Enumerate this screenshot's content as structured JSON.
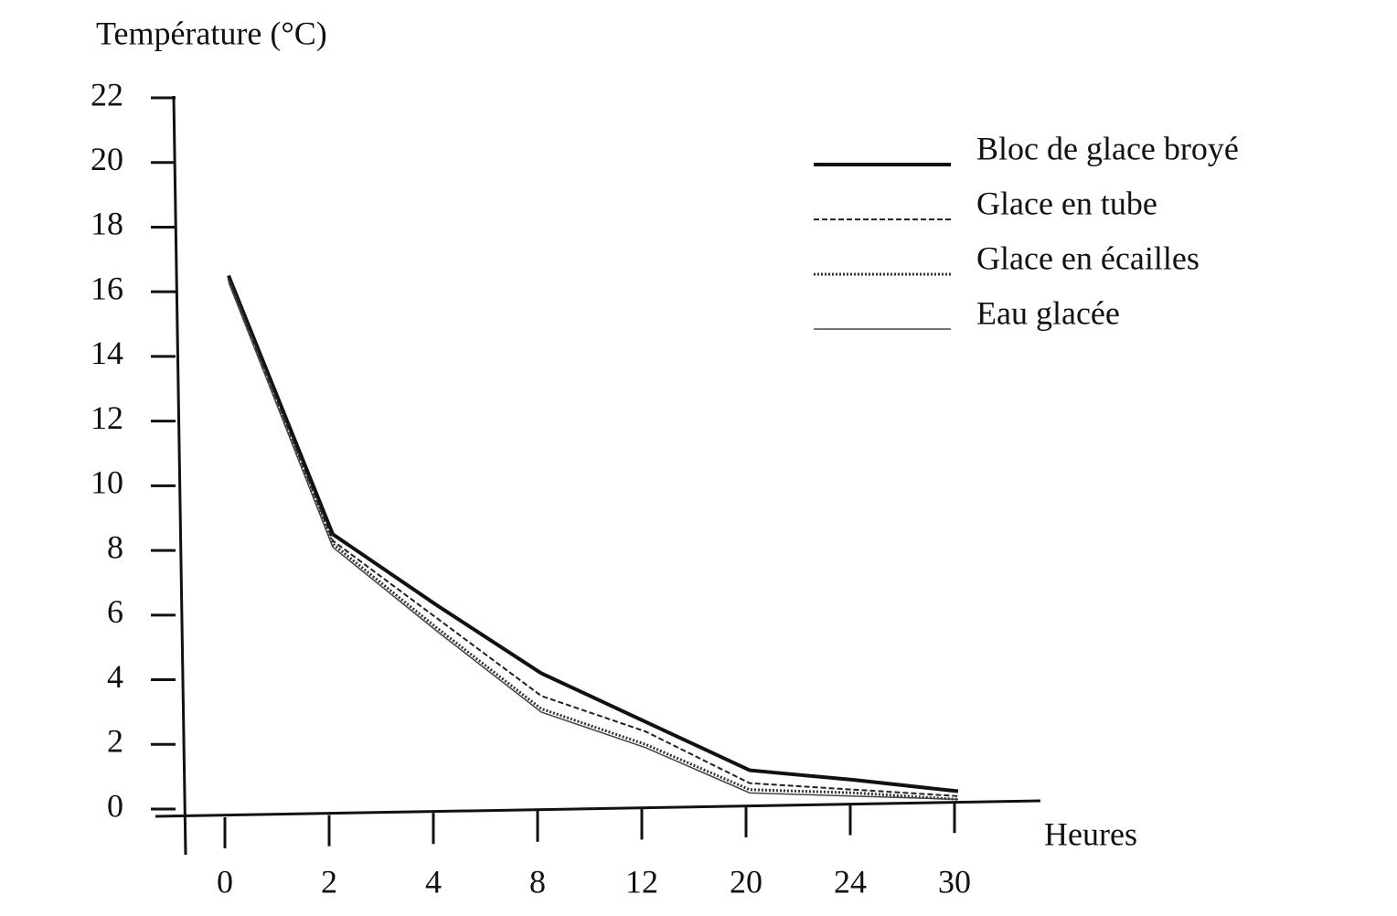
{
  "chart_data": {
    "type": "line",
    "y_label": "Température (°C)",
    "x_label": "Heures",
    "categories": [
      "0",
      "2",
      "4",
      "8",
      "12",
      "20",
      "24",
      "30"
    ],
    "series": [
      {
        "name": "Bloc de glace broyé",
        "color": "#111111",
        "line_style": "solid-thick",
        "values": [
          16.5,
          8.5,
          6.3,
          4.2,
          2.7,
          1.2,
          0.9,
          0.55
        ]
      },
      {
        "name": "Glace en tube",
        "color": "#222222",
        "line_style": "dashed",
        "values": [
          16.4,
          8.3,
          5.9,
          3.5,
          2.4,
          0.8,
          0.6,
          0.4
        ]
      },
      {
        "name": "Glace en écailles",
        "color": "#333333",
        "line_style": "dotted",
        "values": [
          16.4,
          8.2,
          5.6,
          3.1,
          2.0,
          0.6,
          0.5,
          0.3
        ]
      },
      {
        "name": "Eau glacée",
        "color": "#444444",
        "line_style": "solid-thin",
        "values": [
          16.3,
          8.1,
          5.5,
          3.0,
          1.9,
          0.5,
          0.4,
          0.3
        ]
      }
    ],
    "ylim": [
      0,
      22
    ],
    "yticks": [
      0,
      2,
      4,
      6,
      8,
      10,
      12,
      14,
      16,
      18,
      20,
      22
    ],
    "grid": false,
    "legend": "top-right"
  }
}
